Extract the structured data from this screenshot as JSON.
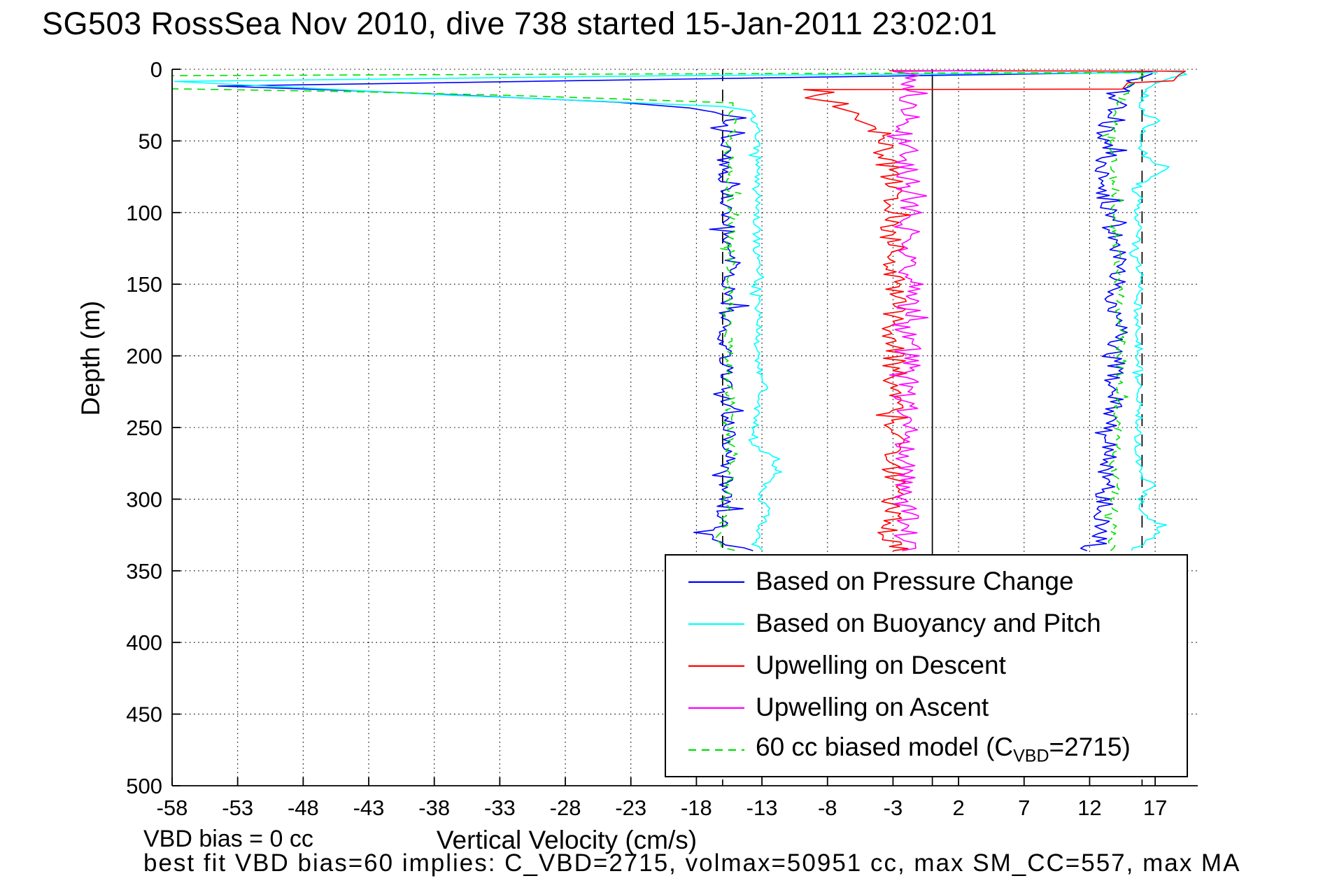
{
  "title": "SG503 RossSea Nov 2010, dive 738 started 15-Jan-2011 23:02:01",
  "annotations": {
    "vbd_bias": "VBD bias = 0 cc",
    "best_fit": "best fit VBD bias=60 implies: C_VBD=2715, volmax=50951 cc, max SM_CC=557, max MA"
  },
  "legend": {
    "position": "south-east-inside",
    "items": [
      {
        "id": "pressure",
        "label": "Based on Pressure Change",
        "color": "#0000FF",
        "dash": false
      },
      {
        "id": "buoyancy",
        "label": "Based on Buoyancy and Pitch",
        "color": "#00FFFF",
        "dash": false
      },
      {
        "id": "upwelling-descent",
        "label": "Upwelling on Descent",
        "color": "#FF0000",
        "dash": false
      },
      {
        "id": "upwelling-ascent",
        "label": "Upwelling on Ascent",
        "color": "#FF00FF",
        "dash": false
      },
      {
        "id": "biased-model",
        "label": "60 cc biased model (C_VBD=2715)",
        "color": "#00DF00",
        "dash": true,
        "label_parts": [
          {
            "t": "60 cc biased model (C"
          },
          {
            "t": "VBD",
            "sub": true
          },
          {
            "t": "=2715)"
          }
        ]
      }
    ]
  },
  "chart_data": {
    "type": "line",
    "title": "SG503 RossSea Nov 2010, dive 738 started 15-Jan-2011 23:02:01",
    "xlabel": "Vertical Velocity (cm/s)",
    "ylabel": "Depth (m)",
    "xlim": [
      -58,
      20.25
    ],
    "ylim": [
      0,
      500
    ],
    "y_axis_reversed": true,
    "grid": "dotted",
    "xticks": [
      -58,
      -53,
      -48,
      -43,
      -38,
      -33,
      -28,
      -23,
      -18,
      -13,
      -8,
      -3,
      2,
      7,
      12,
      17
    ],
    "yticks": [
      0,
      50,
      100,
      150,
      200,
      250,
      300,
      350,
      400,
      450,
      500
    ],
    "depth_extent_m": [
      0,
      336
    ],
    "reference_lines": [
      {
        "x": 0,
        "style": "solid",
        "color": "#000000"
      },
      {
        "x": -16,
        "style": "dashed",
        "color": "#000000"
      },
      {
        "x": 16,
        "style": "dashed",
        "color": "#000000"
      }
    ],
    "series": [
      {
        "id": "pressure-descent",
        "name": "Based on Pressure Change",
        "branch": "descent",
        "color": "#0000FF",
        "dash": null,
        "seed": 7,
        "jitter": {
          "amp": 0.55,
          "spike": 1.5,
          "from": 31
        },
        "anchors": [
          [
            2,
            16.8
          ],
          [
            11.7,
            -54.5
          ],
          [
            15,
            -44
          ],
          [
            18.5,
            -35
          ],
          [
            23,
            -24
          ],
          [
            27,
            -18.5
          ],
          [
            30,
            -16.6
          ],
          [
            34,
            -15.8
          ],
          [
            60,
            -15.9
          ],
          [
            100,
            -15.7
          ],
          [
            140,
            -15.4
          ],
          [
            180,
            -15.8
          ],
          [
            220,
            -15.7
          ],
          [
            260,
            -15.5
          ],
          [
            300,
            -15.8
          ],
          [
            320,
            -16.1
          ],
          [
            328,
            -17.2
          ],
          [
            332,
            -16.2
          ],
          [
            334,
            -14.4
          ],
          [
            336,
            -13.4
          ]
        ]
      },
      {
        "id": "pressure-ascent",
        "name": "Based on Pressure Change",
        "branch": "ascent",
        "color": "#0000FF",
        "dash": null,
        "seed": 11,
        "jitter": {
          "amp": 0.8,
          "spike": 1.4,
          "from": 8
        },
        "anchors": [
          [
            336,
            11.8
          ],
          [
            331,
            12.6
          ],
          [
            300,
            13.2
          ],
          [
            262,
            13.6
          ],
          [
            222,
            13.9
          ],
          [
            182,
            14.1
          ],
          [
            152,
            13.6
          ],
          [
            141,
            14.6
          ],
          [
            121,
            13.9
          ],
          [
            100,
            13.6
          ],
          [
            71,
            12.9
          ],
          [
            60,
            13.4
          ],
          [
            41,
            13.1
          ],
          [
            30,
            13.9
          ],
          [
            20,
            14.2
          ],
          [
            12,
            14.6
          ],
          [
            8,
            15.4
          ],
          [
            5,
            16.2
          ],
          [
            3,
            16.8
          ]
        ]
      },
      {
        "id": "buoyancy-descent",
        "name": "Based on Buoyancy and Pitch",
        "branch": "descent",
        "color": "#00FFFF",
        "dash": null,
        "seed": 3,
        "jitter": {
          "amp": 0.28,
          "spike": 0.5,
          "from": 32
        },
        "anchors": [
          [
            2.3,
            17.2
          ],
          [
            4.5,
            -20
          ],
          [
            8.5,
            -57.8
          ],
          [
            13,
            -48
          ],
          [
            18,
            -37
          ],
          [
            22,
            -26
          ],
          [
            26,
            -16
          ],
          [
            29,
            -13.8
          ],
          [
            40,
            -13.4
          ],
          [
            80,
            -13.3
          ],
          [
            120,
            -13.4
          ],
          [
            160,
            -13.3
          ],
          [
            200,
            -13.4
          ],
          [
            215,
            -13.1
          ],
          [
            222,
            -12.7
          ],
          [
            230,
            -13.3
          ],
          [
            250,
            -13.5
          ],
          [
            262,
            -13.6
          ],
          [
            268,
            -12.8
          ],
          [
            272,
            -11.9
          ],
          [
            278,
            -12.1
          ],
          [
            284,
            -11.8
          ],
          [
            288,
            -12.6
          ],
          [
            295,
            -13.2
          ],
          [
            303,
            -12.9
          ],
          [
            308,
            -12.5
          ],
          [
            314,
            -12.8
          ],
          [
            322,
            -13.2
          ],
          [
            330,
            -13.6
          ],
          [
            336,
            -13.2
          ]
        ]
      },
      {
        "id": "buoyancy-ascent",
        "name": "Based on Buoyancy and Pitch",
        "branch": "ascent",
        "color": "#00FFFF",
        "dash": null,
        "seed": 5,
        "jitter": {
          "amp": 0.3,
          "spike": 0.5,
          "from": 14
        },
        "anchors": [
          [
            336,
            15.2
          ],
          [
            325,
            17
          ],
          [
            318,
            17.6
          ],
          [
            312,
            16.2
          ],
          [
            300,
            15.8
          ],
          [
            290,
            16.8
          ],
          [
            284,
            15.9
          ],
          [
            260,
            15.6
          ],
          [
            240,
            15.8
          ],
          [
            220,
            15.7
          ],
          [
            200,
            15.8
          ],
          [
            180,
            15.6
          ],
          [
            160,
            15.7
          ],
          [
            140,
            15.9
          ],
          [
            130,
            15.3
          ],
          [
            120,
            15.6
          ],
          [
            100,
            15.7
          ],
          [
            80,
            15.8
          ],
          [
            72,
            17.4
          ],
          [
            68,
            17.8
          ],
          [
            64,
            16.5
          ],
          [
            55,
            15.9
          ],
          [
            45,
            15.7
          ],
          [
            38,
            16.8
          ],
          [
            34,
            17.3
          ],
          [
            30,
            16.2
          ],
          [
            25,
            15.9
          ],
          [
            20,
            16.1
          ],
          [
            14,
            16.4
          ],
          [
            10,
            17
          ],
          [
            6,
            18.2
          ],
          [
            3.5,
            19.4
          ],
          [
            2,
            19
          ],
          [
            1.2,
            17.5
          ]
        ]
      },
      {
        "id": "upwelling-descent",
        "name": "Upwelling on Descent",
        "branch": "descent",
        "color": "#FF0000",
        "dash": null,
        "seed": 2,
        "jitter": {
          "amp": 1.0,
          "spike": 1.5,
          "from": 42
        },
        "anchors": [
          [
            1,
            -3.3
          ],
          [
            1.3,
            19.3
          ],
          [
            4,
            18.8
          ],
          [
            8,
            18.4
          ],
          [
            9.5,
            14.9
          ],
          [
            13.8,
            14.5
          ],
          [
            14.2,
            -9.8
          ],
          [
            16,
            -7.5
          ],
          [
            18,
            -8.8
          ],
          [
            20,
            -9.7
          ],
          [
            22,
            -8.2
          ],
          [
            24,
            -6.4
          ],
          [
            26,
            -7.6
          ],
          [
            28,
            -6.8
          ],
          [
            31,
            -5.6
          ],
          [
            35,
            -5.9
          ],
          [
            40,
            -4.4
          ],
          [
            48,
            -3.9
          ],
          [
            60,
            -3.4
          ],
          [
            100,
            -3.1
          ],
          [
            150,
            -2.9
          ],
          [
            200,
            -3
          ],
          [
            250,
            -2.8
          ],
          [
            300,
            -2.9
          ],
          [
            330,
            -3.3
          ],
          [
            336,
            -2.7
          ]
        ]
      },
      {
        "id": "upwelling-ascent",
        "name": "Upwelling on Ascent",
        "branch": "ascent",
        "color": "#FF00FF",
        "dash": null,
        "seed": 4,
        "jitter": {
          "amp": 1.05,
          "spike": 1.5,
          "from": 2
        },
        "anchors": [
          [
            336,
            -2.3
          ],
          [
            320,
            -2
          ],
          [
            300,
            -1.9
          ],
          [
            280,
            -1.8
          ],
          [
            260,
            -2
          ],
          [
            240,
            -1.7
          ],
          [
            220,
            -1.9
          ],
          [
            200,
            -1.8
          ],
          [
            180,
            -1.9
          ],
          [
            160,
            -1.8
          ],
          [
            140,
            -1.6
          ],
          [
            120,
            -1.9
          ],
          [
            100,
            -1.8
          ],
          [
            80,
            -2
          ],
          [
            60,
            -1.7
          ],
          [
            50,
            -1.9
          ],
          [
            40,
            -2.3
          ],
          [
            30,
            -1.7
          ],
          [
            20,
            -1.9
          ],
          [
            12,
            -1.6
          ],
          [
            6,
            -2
          ],
          [
            3,
            -1.8
          ],
          [
            1.5,
            -3
          ],
          [
            0.8,
            4.6
          ]
        ]
      },
      {
        "id": "model-descent",
        "name": "60 cc biased model (C_VBD=2715)",
        "branch": "descent",
        "color": "#00DF00",
        "dash": "11 8",
        "seed": 9,
        "jitter": {
          "amp": 0.4,
          "spike": 0.8,
          "from": 26
        },
        "anchors": [
          [
            2.2,
            16.2
          ],
          [
            3.5,
            -30
          ],
          [
            4.5,
            -59
          ],
          [
            13.5,
            -59
          ],
          [
            15.6,
            -44.5
          ],
          [
            18,
            -33
          ],
          [
            21,
            -23
          ],
          [
            23.5,
            -15.2
          ],
          [
            30,
            -15.3
          ],
          [
            70,
            -15.5
          ],
          [
            110,
            -15.3
          ],
          [
            150,
            -15.5
          ],
          [
            200,
            -15.6
          ],
          [
            250,
            -15.4
          ],
          [
            290,
            -15.6
          ],
          [
            320,
            -15.9
          ],
          [
            328,
            -16.8
          ],
          [
            333,
            -15.8
          ],
          [
            336,
            -14.8
          ]
        ]
      },
      {
        "id": "model-ascent",
        "name": "60 cc biased model (C_VBD=2715)",
        "branch": "ascent",
        "color": "#00DF00",
        "dash": "11 8",
        "seed": 13,
        "jitter": {
          "amp": 0.35,
          "spike": 0.6,
          "from": 10
        },
        "anchors": [
          [
            336,
            13.6
          ],
          [
            300,
            13.9
          ],
          [
            262,
            14.1
          ],
          [
            222,
            14.2
          ],
          [
            182,
            14.4
          ],
          [
            140,
            14.2
          ],
          [
            100,
            14
          ],
          [
            60,
            13.7
          ],
          [
            40,
            13.8
          ],
          [
            25,
            14.3
          ],
          [
            15,
            14.8
          ],
          [
            8,
            15.5
          ],
          [
            4,
            16.1
          ],
          [
            2.5,
            16.4
          ]
        ]
      }
    ]
  }
}
